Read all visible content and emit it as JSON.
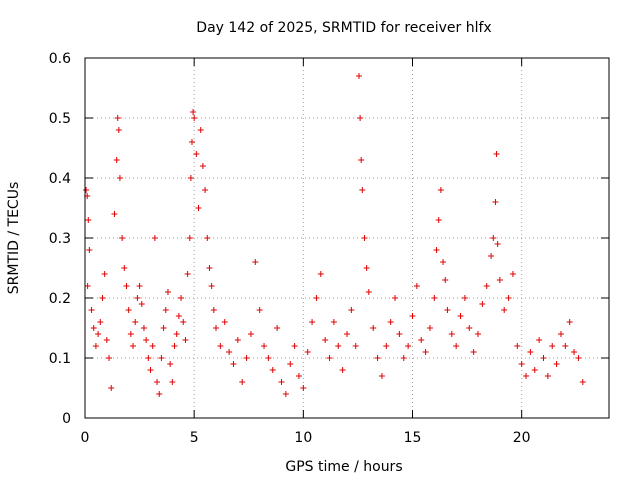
{
  "chart_data": {
    "type": "scatter",
    "title": "Day 142 of 2025, SRMTID for receiver hlfx",
    "xlabel": "GPS time / hours",
    "ylabel": "SRMTID / TECUs",
    "xlim": [
      0,
      24
    ],
    "ylim": [
      0,
      0.6
    ],
    "xticks": [
      0,
      5,
      10,
      15,
      20
    ],
    "xtick_labels": [
      "0",
      "5",
      "10",
      "15",
      "20"
    ],
    "yticks": [
      0,
      0.1,
      0.2,
      0.3,
      0.4,
      0.5,
      0.6
    ],
    "ytick_labels": [
      "0",
      "0.1",
      "0.2",
      "0.3",
      "0.4",
      "0.5",
      "0.6"
    ],
    "grid": true,
    "marker": "+",
    "color": "#e00000",
    "series": [
      {
        "name": "SRMTID",
        "points": [
          [
            0.05,
            0.38
          ],
          [
            0.1,
            0.37
          ],
          [
            0.15,
            0.33
          ],
          [
            0.2,
            0.28
          ],
          [
            0.12,
            0.22
          ],
          [
            0.3,
            0.18
          ],
          [
            0.4,
            0.15
          ],
          [
            0.5,
            0.12
          ],
          [
            0.6,
            0.14
          ],
          [
            0.7,
            0.16
          ],
          [
            0.8,
            0.2
          ],
          [
            0.9,
            0.24
          ],
          [
            1.0,
            0.13
          ],
          [
            1.1,
            0.1
          ],
          [
            1.2,
            0.05
          ],
          [
            1.35,
            0.34
          ],
          [
            1.45,
            0.43
          ],
          [
            1.5,
            0.5
          ],
          [
            1.55,
            0.48
          ],
          [
            1.6,
            0.4
          ],
          [
            1.7,
            0.3
          ],
          [
            1.8,
            0.25
          ],
          [
            1.9,
            0.22
          ],
          [
            2.0,
            0.18
          ],
          [
            2.1,
            0.14
          ],
          [
            2.2,
            0.12
          ],
          [
            2.3,
            0.16
          ],
          [
            2.4,
            0.2
          ],
          [
            2.5,
            0.22
          ],
          [
            2.6,
            0.19
          ],
          [
            2.7,
            0.15
          ],
          [
            2.8,
            0.13
          ],
          [
            2.9,
            0.1
          ],
          [
            3.0,
            0.08
          ],
          [
            3.1,
            0.12
          ],
          [
            3.2,
            0.3
          ],
          [
            3.3,
            0.06
          ],
          [
            3.4,
            0.04
          ],
          [
            3.5,
            0.1
          ],
          [
            3.6,
            0.15
          ],
          [
            3.7,
            0.18
          ],
          [
            3.8,
            0.21
          ],
          [
            3.9,
            0.09
          ],
          [
            4.0,
            0.06
          ],
          [
            4.1,
            0.12
          ],
          [
            4.2,
            0.14
          ],
          [
            4.3,
            0.17
          ],
          [
            4.4,
            0.2
          ],
          [
            4.5,
            0.16
          ],
          [
            4.6,
            0.13
          ],
          [
            4.7,
            0.24
          ],
          [
            4.8,
            0.3
          ],
          [
            4.85,
            0.4
          ],
          [
            4.9,
            0.46
          ],
          [
            4.95,
            0.51
          ],
          [
            5.0,
            0.5
          ],
          [
            5.1,
            0.44
          ],
          [
            5.2,
            0.35
          ],
          [
            5.3,
            0.48
          ],
          [
            5.4,
            0.42
          ],
          [
            5.5,
            0.38
          ],
          [
            5.6,
            0.3
          ],
          [
            5.7,
            0.25
          ],
          [
            5.8,
            0.22
          ],
          [
            5.9,
            0.18
          ],
          [
            6.0,
            0.15
          ],
          [
            6.2,
            0.12
          ],
          [
            6.4,
            0.16
          ],
          [
            6.6,
            0.11
          ],
          [
            6.8,
            0.09
          ],
          [
            7.0,
            0.13
          ],
          [
            7.2,
            0.06
          ],
          [
            7.4,
            0.1
          ],
          [
            7.6,
            0.14
          ],
          [
            7.8,
            0.26
          ],
          [
            8.0,
            0.18
          ],
          [
            8.2,
            0.12
          ],
          [
            8.4,
            0.1
          ],
          [
            8.6,
            0.08
          ],
          [
            8.8,
            0.15
          ],
          [
            9.0,
            0.06
          ],
          [
            9.2,
            0.04
          ],
          [
            9.4,
            0.09
          ],
          [
            9.6,
            0.12
          ],
          [
            9.8,
            0.07
          ],
          [
            10.0,
            0.05
          ],
          [
            10.2,
            0.11
          ],
          [
            10.4,
            0.16
          ],
          [
            10.6,
            0.2
          ],
          [
            10.8,
            0.24
          ],
          [
            11.0,
            0.13
          ],
          [
            11.2,
            0.1
          ],
          [
            11.4,
            0.16
          ],
          [
            11.6,
            0.12
          ],
          [
            11.8,
            0.08
          ],
          [
            12.0,
            0.14
          ],
          [
            12.2,
            0.18
          ],
          [
            12.4,
            0.12
          ],
          [
            12.55,
            0.57
          ],
          [
            12.6,
            0.5
          ],
          [
            12.65,
            0.43
          ],
          [
            12.7,
            0.38
          ],
          [
            12.8,
            0.3
          ],
          [
            12.9,
            0.25
          ],
          [
            13.0,
            0.21
          ],
          [
            13.2,
            0.15
          ],
          [
            13.4,
            0.1
          ],
          [
            13.6,
            0.07
          ],
          [
            13.8,
            0.12
          ],
          [
            14.0,
            0.16
          ],
          [
            14.2,
            0.2
          ],
          [
            14.4,
            0.14
          ],
          [
            14.6,
            0.1
          ],
          [
            14.8,
            0.12
          ],
          [
            15.0,
            0.17
          ],
          [
            15.2,
            0.22
          ],
          [
            15.4,
            0.13
          ],
          [
            15.6,
            0.11
          ],
          [
            15.8,
            0.15
          ],
          [
            16.0,
            0.2
          ],
          [
            16.1,
            0.28
          ],
          [
            16.2,
            0.33
          ],
          [
            16.3,
            0.38
          ],
          [
            16.4,
            0.26
          ],
          [
            16.5,
            0.23
          ],
          [
            16.6,
            0.18
          ],
          [
            16.8,
            0.14
          ],
          [
            17.0,
            0.12
          ],
          [
            17.2,
            0.17
          ],
          [
            17.4,
            0.2
          ],
          [
            17.6,
            0.15
          ],
          [
            17.8,
            0.11
          ],
          [
            18.0,
            0.14
          ],
          [
            18.2,
            0.19
          ],
          [
            18.4,
            0.22
          ],
          [
            18.6,
            0.27
          ],
          [
            18.7,
            0.3
          ],
          [
            18.8,
            0.36
          ],
          [
            18.85,
            0.44
          ],
          [
            18.9,
            0.29
          ],
          [
            19.0,
            0.23
          ],
          [
            19.2,
            0.18
          ],
          [
            19.4,
            0.2
          ],
          [
            19.6,
            0.24
          ],
          [
            19.8,
            0.12
          ],
          [
            20.0,
            0.09
          ],
          [
            20.2,
            0.07
          ],
          [
            20.4,
            0.11
          ],
          [
            20.6,
            0.08
          ],
          [
            20.8,
            0.13
          ],
          [
            21.0,
            0.1
          ],
          [
            21.2,
            0.07
          ],
          [
            21.4,
            0.12
          ],
          [
            21.6,
            0.09
          ],
          [
            21.8,
            0.14
          ],
          [
            22.0,
            0.12
          ],
          [
            22.2,
            0.16
          ],
          [
            22.4,
            0.11
          ],
          [
            22.6,
            0.1
          ],
          [
            22.8,
            0.06
          ]
        ]
      }
    ]
  }
}
